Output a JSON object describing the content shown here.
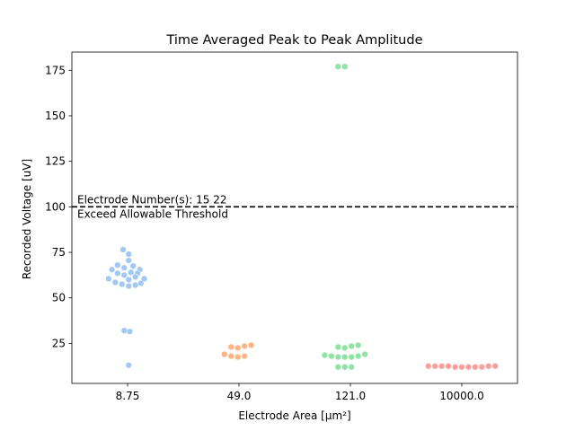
{
  "chart_data": {
    "type": "scatter",
    "subtype": "swarm",
    "title": "Time Averaged Peak to Peak Amplitude",
    "xlabel": "Electrode Area [µm²]",
    "ylabel": "Recorded Voltage [uV]",
    "categories": [
      "8.75",
      "49.0",
      "121.0",
      "10000.0"
    ],
    "ylim": [
      3,
      185
    ],
    "yticks": [
      25,
      50,
      75,
      100,
      125,
      150,
      175
    ],
    "grid": false,
    "threshold": {
      "value": 100,
      "style": "dashed",
      "color": "#000000"
    },
    "annotations": [
      {
        "text": "Electrode Number(s):   15  22",
        "y": 101.5,
        "position": "above-line-left"
      },
      {
        "text": "Exceed Allowable Threshold",
        "y": 99,
        "position": "below-line-left"
      }
    ],
    "series": [
      {
        "category": "8.75",
        "color": "#a1c9f4",
        "points": [
          {
            "dx": -0.04,
            "y": 76.5
          },
          {
            "dx": 0.01,
            "y": 74
          },
          {
            "dx": 0.01,
            "y": 70.5
          },
          {
            "dx": -0.09,
            "y": 68
          },
          {
            "dx": -0.03,
            "y": 66.5
          },
          {
            "dx": 0.05,
            "y": 67.5
          },
          {
            "dx": -0.14,
            "y": 65.5
          },
          {
            "dx": 0.11,
            "y": 65.5
          },
          {
            "dx": -0.09,
            "y": 63.5
          },
          {
            "dx": -0.03,
            "y": 62.5
          },
          {
            "dx": 0.03,
            "y": 64
          },
          {
            "dx": 0.09,
            "y": 63.5
          },
          {
            "dx": -0.17,
            "y": 60.5
          },
          {
            "dx": 0.01,
            "y": 60
          },
          {
            "dx": 0.07,
            "y": 61.5
          },
          {
            "dx": 0.15,
            "y": 60.5
          },
          {
            "dx": -0.11,
            "y": 58.5
          },
          {
            "dx": -0.05,
            "y": 57.5
          },
          {
            "dx": 0.01,
            "y": 56.5
          },
          {
            "dx": 0.07,
            "y": 57
          },
          {
            "dx": 0.12,
            "y": 58
          },
          {
            "dx": -0.03,
            "y": 32
          },
          {
            "dx": 0.02,
            "y": 31.5
          },
          {
            "dx": 0.01,
            "y": 13
          }
        ]
      },
      {
        "category": "49.0",
        "color": "#ffb482",
        "points": [
          {
            "dx": -0.07,
            "y": 23
          },
          {
            "dx": -0.01,
            "y": 22.5
          },
          {
            "dx": 0.05,
            "y": 23.5
          },
          {
            "dx": 0.11,
            "y": 24
          },
          {
            "dx": -0.13,
            "y": 19
          },
          {
            "dx": -0.07,
            "y": 18
          },
          {
            "dx": -0.01,
            "y": 17.5
          },
          {
            "dx": 0.05,
            "y": 18
          }
        ]
      },
      {
        "category": "121.0",
        "color": "#8de5a1",
        "points": [
          {
            "dx": -0.11,
            "y": 177
          },
          {
            "dx": -0.05,
            "y": 177
          },
          {
            "dx": -0.11,
            "y": 23
          },
          {
            "dx": -0.05,
            "y": 22.5
          },
          {
            "dx": 0.01,
            "y": 23.5
          },
          {
            "dx": 0.07,
            "y": 24
          },
          {
            "dx": -0.23,
            "y": 18.5
          },
          {
            "dx": -0.17,
            "y": 18
          },
          {
            "dx": -0.11,
            "y": 17.5
          },
          {
            "dx": -0.05,
            "y": 17.5
          },
          {
            "dx": 0.01,
            "y": 17.5
          },
          {
            "dx": 0.07,
            "y": 18
          },
          {
            "dx": 0.13,
            "y": 19
          },
          {
            "dx": -0.11,
            "y": 12
          },
          {
            "dx": -0.05,
            "y": 12
          },
          {
            "dx": 0.01,
            "y": 12
          }
        ]
      },
      {
        "category": "10000.0",
        "color": "#ff9f9b",
        "points": [
          {
            "dx": -0.3,
            "y": 12.5
          },
          {
            "dx": -0.24,
            "y": 12.5
          },
          {
            "dx": -0.18,
            "y": 12.5
          },
          {
            "dx": -0.12,
            "y": 12.5
          },
          {
            "dx": -0.06,
            "y": 12
          },
          {
            "dx": 0,
            "y": 12
          },
          {
            "dx": 0.06,
            "y": 12
          },
          {
            "dx": 0.12,
            "y": 12
          },
          {
            "dx": 0.18,
            "y": 12
          },
          {
            "dx": 0.24,
            "y": 12.5
          },
          {
            "dx": 0.3,
            "y": 12.5
          }
        ]
      }
    ]
  }
}
